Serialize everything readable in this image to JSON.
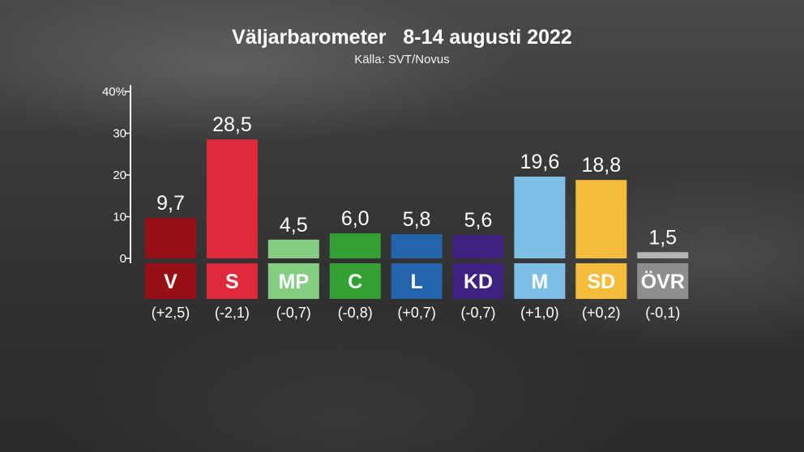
{
  "header": {
    "title": "Väljarbarometer   8-14 augusti 2022",
    "source": "Källa: SVT/Novus"
  },
  "chart_data": {
    "type": "bar",
    "title": "Väljarbarometer   8-14 augusti 2022",
    "subtitle": "Källa: SVT/Novus",
    "xlabel": "",
    "ylabel": "",
    "ylim": [
      0,
      40
    ],
    "yticks": [
      0,
      10,
      20,
      30,
      40
    ],
    "ytick_labels": [
      "0",
      "10",
      "20",
      "30",
      "40%"
    ],
    "grid": false,
    "categories": [
      "V",
      "S",
      "MP",
      "C",
      "L",
      "KD",
      "M",
      "SD",
      "ÖVR"
    ],
    "values": [
      9.7,
      28.5,
      4.5,
      6.0,
      5.8,
      5.6,
      19.6,
      18.8,
      1.5
    ],
    "value_labels": [
      "9,7",
      "28,5",
      "4,5",
      "6,0",
      "5,8",
      "5,6",
      "19,6",
      "18,8",
      "1,5"
    ],
    "changes": [
      2.5,
      -2.1,
      -0.7,
      -0.8,
      0.7,
      -0.7,
      1.0,
      0.2,
      -0.1
    ],
    "change_labels": [
      "(+2,5)",
      "(-2,1)",
      "(-0,7)",
      "(-0,8)",
      "(+0,7)",
      "(-0,7)",
      "(+1,0)",
      "(+0,2)",
      "(-0,1)"
    ],
    "colors": [
      "#961016",
      "#e0293a",
      "#84cd83",
      "#33a033",
      "#2265ad",
      "#3f2182",
      "#7ebfe6",
      "#f6bd3c",
      "#b4b4b4"
    ],
    "label_box_colors": [
      "#961016",
      "#e0293a",
      "#84cd83",
      "#33a033",
      "#2265ad",
      "#3f2182",
      "#7ebfe6",
      "#f6bd3c",
      "#8e8e8e"
    ]
  }
}
